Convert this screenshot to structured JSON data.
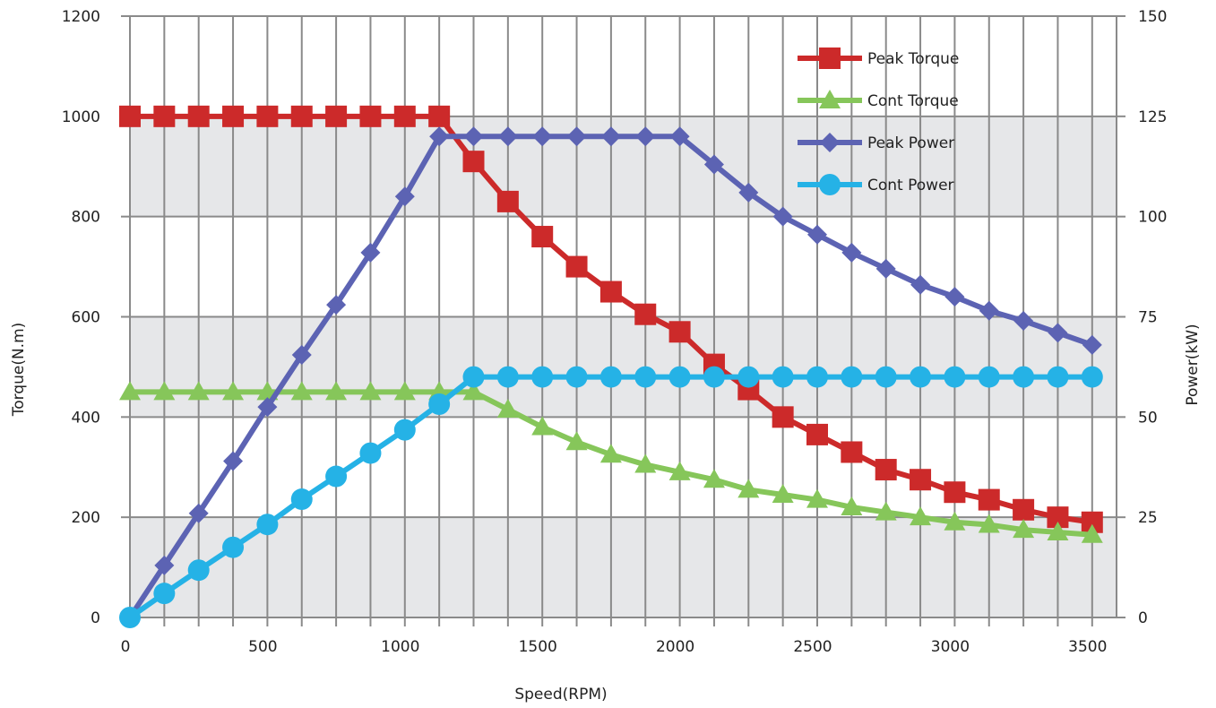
{
  "chart_data": {
    "type": "line",
    "title": "",
    "xlabel": "Speed(RPM)",
    "ylabel_left": "Torque(N.m)",
    "ylabel_right": "Power(kW)",
    "xlim": [
      0,
      3500
    ],
    "ylim_left": [
      0,
      1200
    ],
    "ylim_right": [
      0,
      150
    ],
    "x_ticks": [
      0,
      500,
      1000,
      1500,
      2000,
      2500,
      3000,
      3500
    ],
    "y_left_ticks": [
      0,
      200,
      400,
      600,
      800,
      1000,
      1200
    ],
    "y_right_ticks": [
      0,
      25,
      50,
      75,
      100,
      125,
      150
    ],
    "x_tick_labels": [
      "0",
      "500",
      "1000",
      "1500",
      "2000",
      "2500",
      "3000",
      "3500"
    ],
    "y_left_tick_labels": [
      "0",
      "200",
      "400",
      "600",
      "800",
      "1000",
      "1200"
    ],
    "y_right_tick_labels": [
      "0",
      "25",
      "50",
      "75",
      "100",
      "125",
      "150"
    ],
    "grid": true,
    "legend_position": "top-right",
    "x": [
      0,
      125,
      250,
      375,
      500,
      625,
      750,
      875,
      1000,
      1125,
      1250,
      1375,
      1500,
      1625,
      1750,
      1875,
      2000,
      2125,
      2250,
      2375,
      2500,
      2625,
      2750,
      2875,
      3000,
      3125,
      3250,
      3375,
      3500
    ],
    "series": [
      {
        "name": "Peak Torque",
        "axis": "left",
        "color": "#cc2a2a",
        "marker": "square",
        "values": [
          1000,
          1000,
          1000,
          1000,
          1000,
          1000,
          1000,
          1000,
          1000,
          1000,
          910,
          830,
          760,
          700,
          650,
          605,
          570,
          505,
          455,
          400,
          365,
          330,
          295,
          275,
          250,
          235,
          215,
          200,
          190
        ]
      },
      {
        "name": "Cont Torque",
        "axis": "left",
        "color": "#86c65a",
        "marker": "triangle",
        "values": [
          450,
          450,
          450,
          450,
          450,
          450,
          450,
          450,
          450,
          450,
          450,
          415,
          380,
          350,
          325,
          305,
          290,
          275,
          255,
          245,
          235,
          220,
          210,
          200,
          190,
          185,
          175,
          170,
          165
        ]
      },
      {
        "name": "Peak Power",
        "axis": "right",
        "color": "#5c63b3",
        "marker": "diamond",
        "values": [
          0,
          13,
          26,
          39,
          52.5,
          65.5,
          78,
          91,
          105,
          120,
          120,
          120,
          120,
          120,
          120,
          120,
          120,
          113,
          106,
          100,
          95.5,
          91,
          87,
          83,
          80,
          76.5,
          74,
          71,
          68
        ]
      },
      {
        "name": "Cont Power",
        "axis": "right",
        "color": "#25b2e6",
        "marker": "circle",
        "values": [
          0,
          6,
          11.8,
          17.5,
          23.2,
          29.5,
          35.2,
          41,
          46.8,
          53.2,
          60,
          60,
          60,
          60,
          60,
          60,
          60,
          60,
          60,
          60,
          60,
          60,
          60,
          60,
          60,
          60,
          60,
          60,
          60
        ]
      }
    ]
  }
}
